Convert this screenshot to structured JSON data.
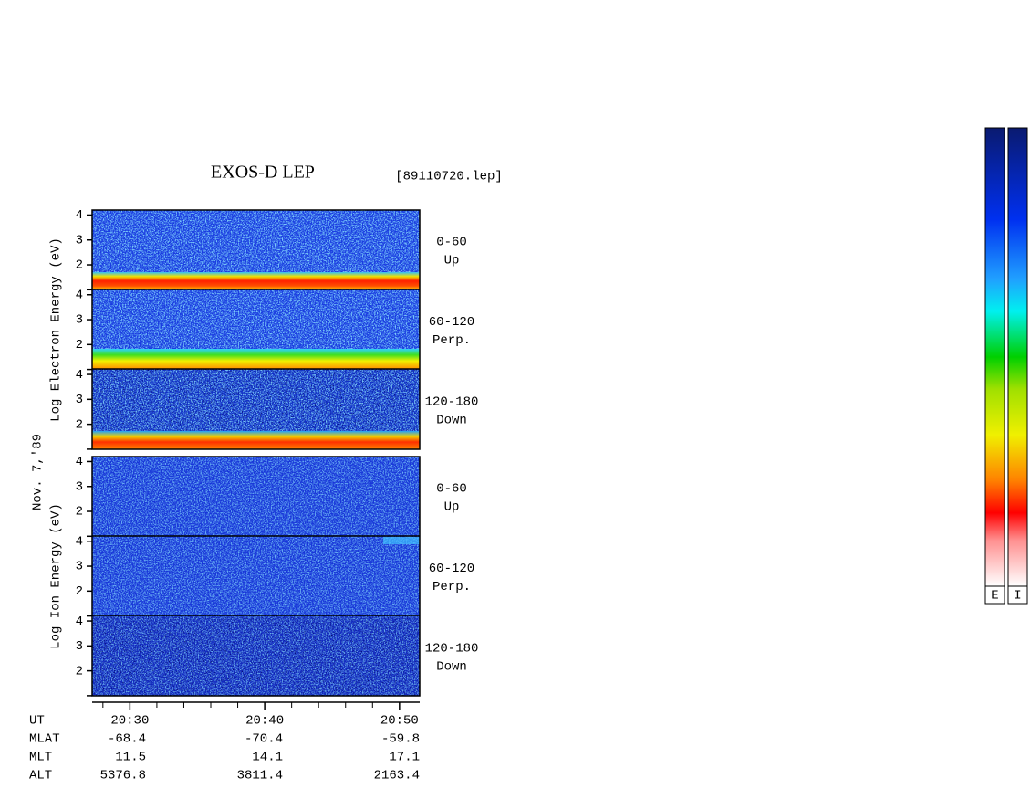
{
  "chart_data": {
    "type": "spectrogram",
    "title": "EXOS-D LEP",
    "file_label": "[89110720.lep]",
    "date_label": "Nov. 7,'89",
    "ylim": [
      1,
      4.2
    ],
    "yticks": [
      2,
      3,
      4
    ],
    "xlim": [
      27.2,
      51.5
    ],
    "xticks": [
      {
        "value": 30,
        "label": "20:30"
      },
      {
        "value": 40,
        "label": "20:40"
      },
      {
        "value": 50,
        "label": "20:50"
      }
    ],
    "xminorticks": [
      28,
      32,
      34,
      36,
      38,
      42,
      44,
      46,
      48
    ],
    "panels": [
      {
        "ylabel": "Log Electron Energy (eV)",
        "channels": [
          {
            "angle": "0-60",
            "direction": "Up"
          },
          {
            "angle": "60-120",
            "direction": "Perp."
          },
          {
            "angle": "120-180",
            "direction": "Down"
          }
        ]
      },
      {
        "ylabel": "Log Ion Energy (eV)",
        "channels": [
          {
            "angle": "0-60",
            "direction": "Up"
          },
          {
            "angle": "60-120",
            "direction": "Perp."
          },
          {
            "angle": "120-180",
            "direction": "Down"
          }
        ]
      }
    ],
    "ephemeris": {
      "time_label": "UT",
      "rows": [
        {
          "label": "MLAT",
          "values": [
            "-68.4",
            "-70.4",
            "-59.8"
          ]
        },
        {
          "label": "MLT",
          "values": [
            "11.5",
            "14.1",
            "17.1"
          ]
        },
        {
          "label": "ALT",
          "values": [
            "5376.8",
            "3811.4",
            "2163.4"
          ]
        }
      ]
    },
    "colorbars": [
      "E",
      "I"
    ]
  }
}
